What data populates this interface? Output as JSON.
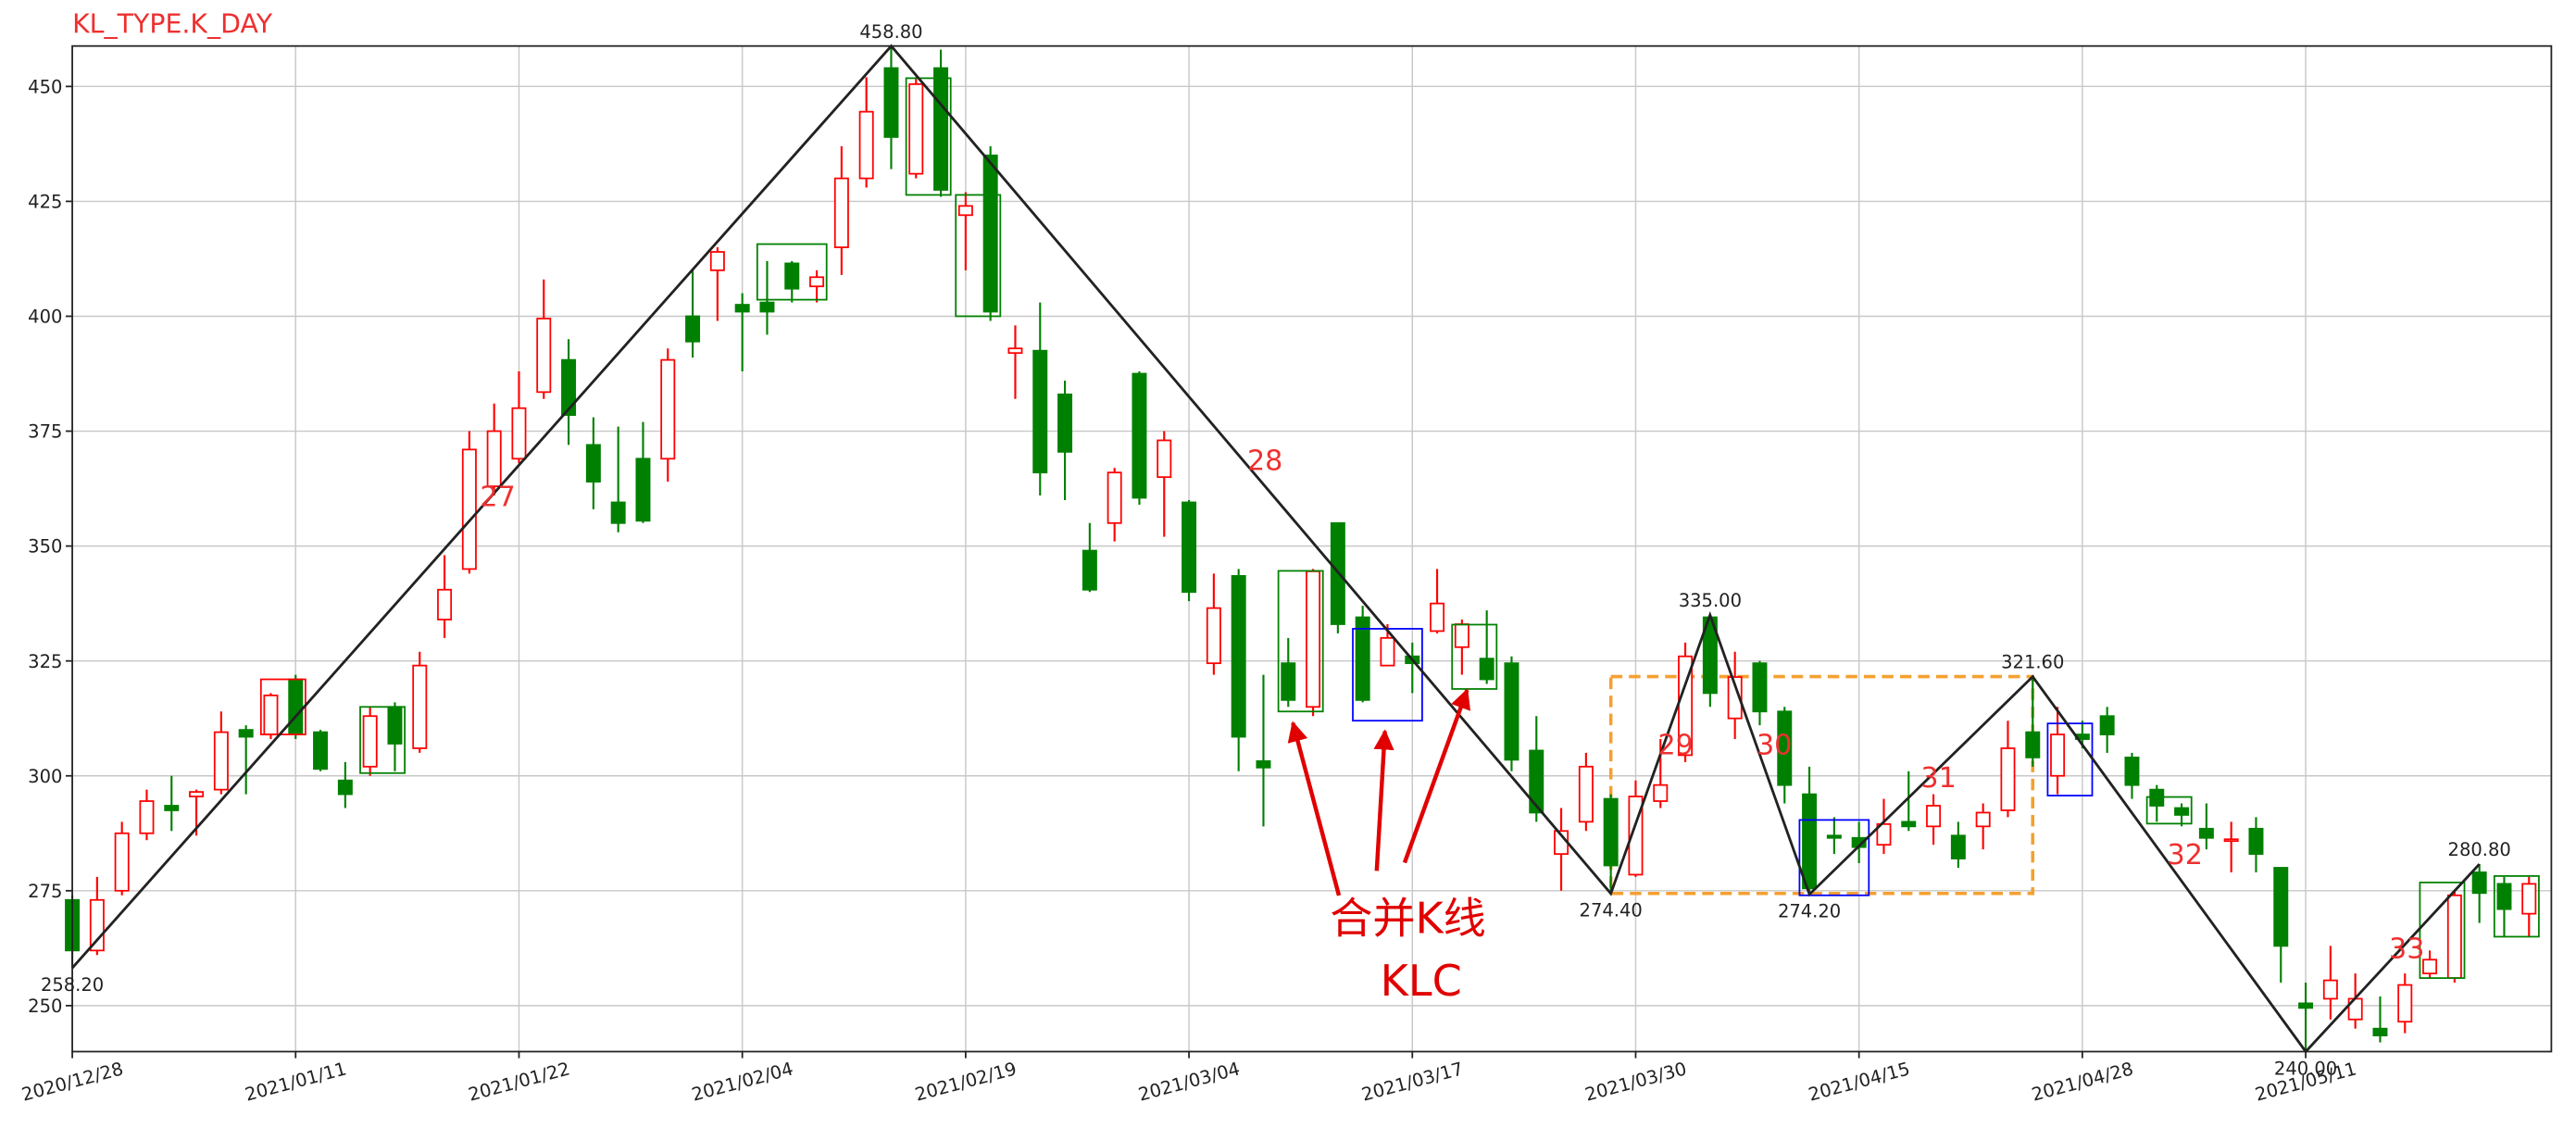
{
  "chart_data": {
    "type": "candlestick",
    "title": "KL_TYPE.K_DAY",
    "categories": [
      "2020/12/28",
      null,
      null,
      null,
      null,
      null,
      null,
      null,
      null,
      "2021/01/11",
      null,
      null,
      null,
      null,
      null,
      null,
      null,
      null,
      "2021/01/22",
      null,
      null,
      null,
      null,
      null,
      null,
      null,
      null,
      "2021/02/04",
      null,
      null,
      null,
      null,
      null,
      null,
      null,
      null,
      "2021/02/19",
      null,
      null,
      null,
      null,
      null,
      null,
      null,
      null,
      "2021/03/04",
      null,
      null,
      null,
      null,
      null,
      null,
      null,
      null,
      "2021/03/17",
      null,
      null,
      null,
      null,
      null,
      null,
      null,
      null,
      "2021/03/30",
      null,
      null,
      null,
      null,
      null,
      null,
      null,
      null,
      "2021/04/15",
      null,
      null,
      null,
      null,
      null,
      null,
      null,
      null,
      "2021/04/28",
      null,
      null,
      null,
      null,
      null,
      null,
      null,
      null,
      "2021/05/11",
      null,
      null,
      null,
      null,
      null,
      null,
      null,
      null,
      null
    ],
    "open": [
      273,
      262,
      275,
      287.5,
      293.5,
      295.5,
      297,
      310,
      309,
      321,
      309.5,
      299,
      302,
      315,
      306,
      334,
      345,
      363,
      369,
      383.5,
      390.5,
      372,
      359.5,
      369,
      369,
      400,
      410,
      402.5,
      403,
      411.5,
      406.5,
      415,
      430,
      454,
      431,
      454,
      422,
      435,
      392,
      392.5,
      383,
      349,
      355,
      387.5,
      365,
      359.5,
      324.5,
      343.5,
      303.2,
      324.5,
      315,
      355,
      334.5,
      324,
      326,
      331.5,
      328,
      325.5,
      324.5,
      305.5,
      283,
      290,
      295,
      278.5,
      294.5,
      304.5,
      334.5,
      312.5,
      324.5,
      314,
      296,
      287,
      286.5,
      285,
      290,
      289,
      287,
      289,
      292.5,
      309.5,
      300,
      309,
      313,
      304,
      297,
      293,
      288.5,
      285.8,
      288.5,
      280,
      250.5,
      251.5,
      247,
      245,
      246.5,
      257,
      256,
      279,
      276.5,
      270
    ],
    "high": [
      274,
      278,
      290,
      297,
      300,
      297,
      314,
      311,
      318,
      322,
      310,
      303,
      315,
      316,
      327,
      348,
      375,
      381,
      388,
      408,
      395,
      378,
      376,
      377,
      393,
      410,
      415,
      405,
      412,
      412,
      410,
      437,
      452,
      458.8,
      452,
      458,
      427,
      437,
      398,
      403,
      386,
      355,
      367,
      388,
      375,
      360,
      344,
      345,
      322,
      330,
      345,
      355,
      337,
      333,
      329,
      345,
      334,
      336,
      326,
      313,
      293,
      305,
      296,
      299,
      308,
      329,
      335,
      327,
      325,
      315,
      302,
      291,
      290,
      295,
      301,
      296,
      290,
      294,
      312,
      321.6,
      315,
      312,
      315,
      305,
      298,
      294,
      294,
      290,
      291,
      280,
      255,
      263,
      257,
      252,
      257,
      262,
      275,
      280.8,
      278,
      278
    ],
    "low": [
      258.2,
      261,
      274,
      286,
      288,
      287,
      296,
      296,
      308,
      308,
      301,
      293,
      300,
      301,
      305,
      330,
      344,
      361,
      368,
      382,
      372,
      358,
      353,
      355,
      364,
      391,
      399,
      388,
      396,
      403,
      403,
      409,
      428,
      432,
      430,
      426,
      410,
      399,
      382,
      361,
      360,
      340,
      351,
      359,
      352,
      338,
      322,
      301,
      289,
      315,
      313,
      331,
      316,
      324,
      318,
      331,
      322,
      320,
      301,
      290,
      275,
      288,
      274.4,
      278,
      293,
      303,
      315,
      308,
      311,
      294,
      274.2,
      283,
      281,
      283,
      288,
      285,
      280,
      284,
      291,
      302,
      296,
      306,
      305,
      295,
      290,
      289,
      284,
      279,
      279,
      255,
      240,
      247,
      245,
      242,
      244,
      256,
      255,
      268,
      265,
      265
    ],
    "close": [
      262,
      273,
      287.5,
      294.5,
      292.5,
      296.5,
      309.5,
      308.5,
      317.5,
      309,
      301.5,
      296,
      313,
      307,
      324,
      340.5,
      371,
      375,
      380,
      399.5,
      378.5,
      364,
      355,
      355.5,
      390.5,
      394.5,
      414,
      401,
      401,
      406,
      408.5,
      430,
      444.5,
      439,
      450.5,
      427.5,
      424,
      401,
      393,
      366,
      370.5,
      340.5,
      366,
      360.5,
      373,
      340,
      336.5,
      308.5,
      301.8,
      316.5,
      344.5,
      333,
      316.5,
      330,
      324.5,
      337.5,
      333,
      321,
      303.5,
      292,
      288,
      302,
      280.5,
      295.5,
      298,
      326,
      318,
      321.5,
      314,
      298,
      275.5,
      286.5,
      284.5,
      289.5,
      289,
      293.5,
      282,
      292,
      306,
      304,
      309,
      308,
      309,
      298,
      293.5,
      291.5,
      286.5,
      286.2,
      283,
      263,
      249.5,
      255.5,
      251.5,
      243.5,
      254.5,
      260,
      274,
      274.5,
      271,
      276.5
    ],
    "up_color": "red",
    "down_color": "green",
    "ylim": [
      240,
      458.8
    ],
    "yticks": [
      250,
      275,
      300,
      325,
      350,
      375,
      400,
      425,
      450
    ],
    "grid": true,
    "bi": {
      "x": [
        0,
        33,
        62,
        66,
        70,
        79,
        90,
        97
      ],
      "values": [
        258.2,
        458.8,
        274.4,
        335,
        274.2,
        321.6,
        240,
        280.8
      ],
      "value_labels": [
        "258.20",
        "458.80",
        "274.40",
        "335.00",
        "274.20",
        "321.60",
        "240.00",
        "280.80"
      ],
      "color": "#222222"
    },
    "bi_labels": [
      "27",
      "28",
      "29",
      "30",
      "31",
      "32",
      "33"
    ],
    "klc": [
      {
        "from": 8,
        "to": 9,
        "high": 321,
        "low": 309,
        "color": "red"
      },
      {
        "from": 12,
        "to": 13,
        "high": 315,
        "low": 300.6,
        "color": "green"
      },
      {
        "from": 28,
        "to": 30,
        "high": 415.7,
        "low": 403.6,
        "color": "green"
      },
      {
        "from": 34,
        "to": 35,
        "high": 451.8,
        "low": 426.4,
        "color": "green"
      },
      {
        "from": 36,
        "to": 37,
        "high": 426.4,
        "low": 400,
        "color": "green"
      },
      {
        "from": 49,
        "to": 50,
        "high": 344.6,
        "low": 314,
        "color": "green"
      },
      {
        "from": 52,
        "to": 54,
        "high": 332,
        "low": 312,
        "color": "blue"
      },
      {
        "from": 56,
        "to": 57,
        "high": 332.9,
        "low": 318.9,
        "color": "green"
      },
      {
        "from": 70,
        "to": 72,
        "high": 290.4,
        "low": 274,
        "color": "blue"
      },
      {
        "from": 80,
        "to": 81,
        "high": 311.4,
        "low": 295.7,
        "color": "blue"
      },
      {
        "from": 84,
        "to": 85,
        "high": 295.4,
        "low": 289.6,
        "color": "green"
      },
      {
        "from": 95,
        "to": 96,
        "high": 276.8,
        "low": 256,
        "color": "green"
      },
      {
        "from": 98,
        "to": 99,
        "high": 278.2,
        "low": 265,
        "color": "green"
      }
    ],
    "zs": {
      "from": 62,
      "to": 79,
      "high": 321.6,
      "low": 274.4,
      "color": "#f5a030"
    },
    "annotation": [
      "合并K线",
      "KLC"
    ]
  }
}
